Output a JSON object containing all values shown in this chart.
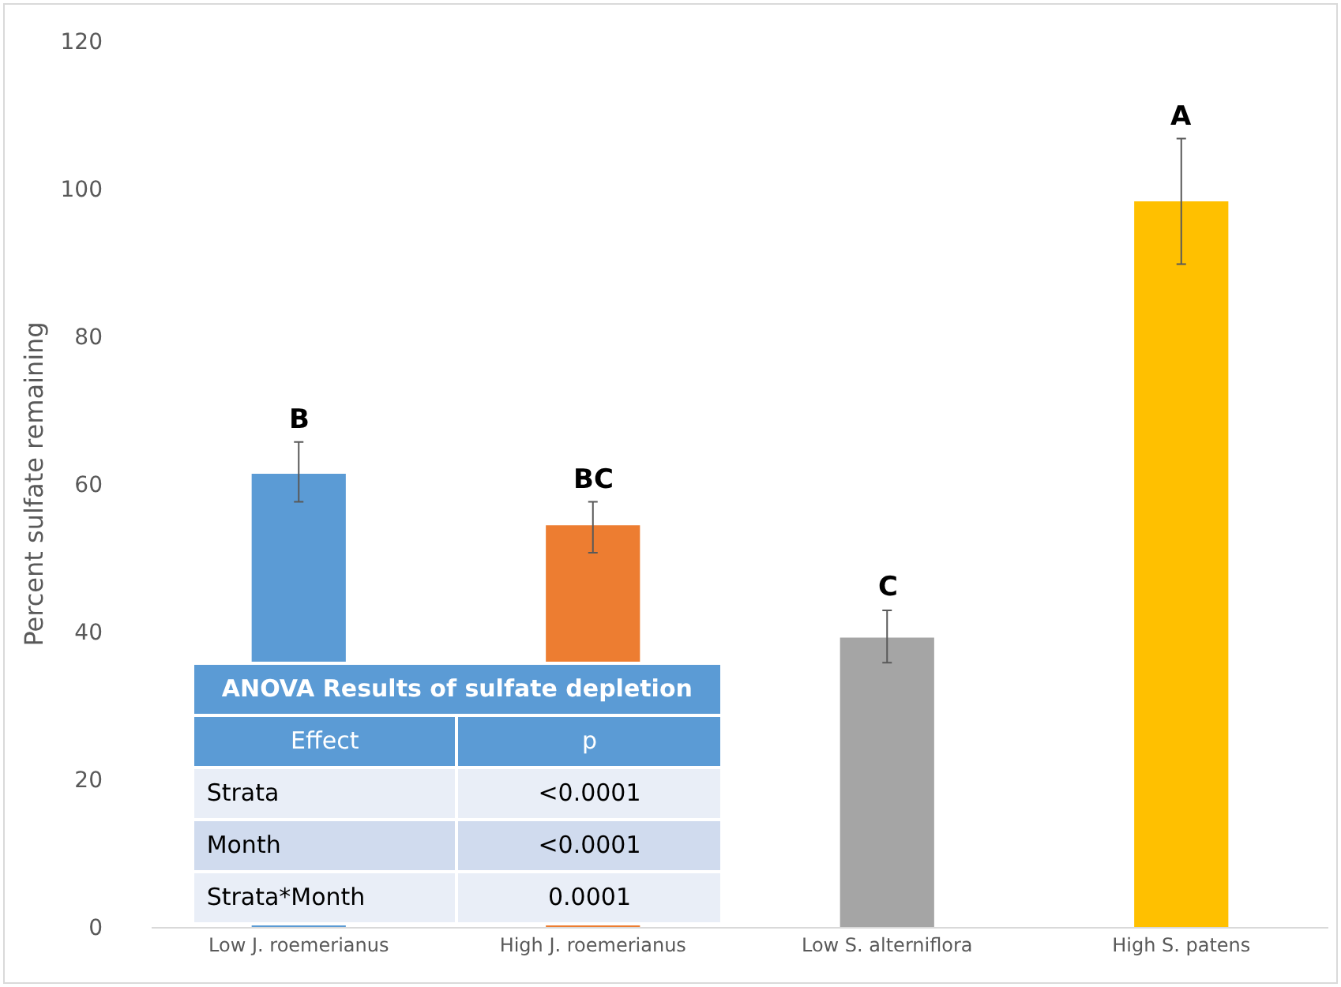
{
  "chart_data": {
    "type": "bar",
    "ylabel": "Percent sulfate remaining",
    "categories": [
      "Low J. roemerianus",
      "High J. roemerianus",
      "Low S. alterniflora",
      "High S. patens"
    ],
    "values": [
      61.4,
      54.4,
      39.2,
      98.3
    ],
    "colors": [
      "#5b9bd5",
      "#ed7d31",
      "#a5a5a5",
      "#ffc000"
    ],
    "errors": [
      [
        57.6,
        65.7
      ],
      [
        50.7,
        57.6
      ],
      [
        35.8,
        42.9
      ],
      [
        89.8,
        106.8
      ]
    ],
    "ylim": [
      0,
      120
    ],
    "yticks": [
      0,
      20,
      40,
      60,
      80,
      100,
      120
    ],
    "grid": false,
    "annotations": [
      {
        "text": "B",
        "x": "Low J. roemerianus",
        "y": 65.7
      },
      {
        "text": "BC",
        "x": "High J. roemerianus",
        "y": 57.6
      },
      {
        "text": "C",
        "x": "Low S. alterniflora",
        "y": 42.9
      },
      {
        "text": "A",
        "x": "High S. patens",
        "y": 106.8
      },
      "ANOVA Results of sulfate depletion",
      "Effect",
      "p",
      "Strata",
      "<0.0001",
      "Month",
      "<0.0001",
      "Strata*Month",
      "0.0001"
    ]
  }
}
